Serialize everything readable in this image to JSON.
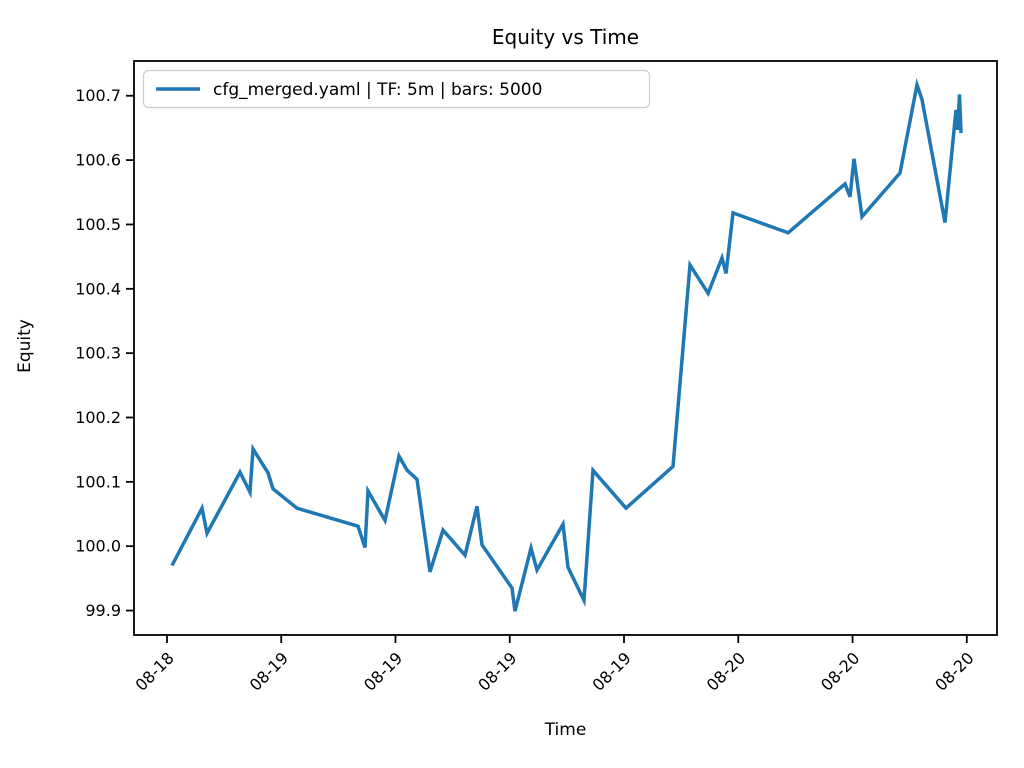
{
  "chart_data": {
    "type": "line",
    "title": "Equity vs Time",
    "xlabel": "Time",
    "ylabel": "Equity",
    "series_color": "#1f77b4",
    "background_color": "#ffffff",
    "grid": false,
    "legend": [
      {
        "label": "cfg_merged.yaml | TF: 5m | bars: 5000",
        "color": "#1f77b4"
      }
    ],
    "legend_position": "upper left",
    "ylim": [
      99.862,
      100.754
    ],
    "y_ticks": [
      99.9,
      100.0,
      100.1,
      100.2,
      100.3,
      100.4,
      100.5,
      100.6,
      100.7
    ],
    "x_tick_labels": [
      "08-18",
      "08-19",
      "08-19",
      "08-19",
      "08-19",
      "08-20",
      "08-20",
      "08-20"
    ],
    "x_tick_positions": [
      0.0382,
      0.1706,
      0.303,
      0.4354,
      0.5678,
      0.7002,
      0.8326,
      0.965
    ],
    "series": [
      {
        "name": "cfg_merged.yaml | TF: 5m | bars: 5000",
        "points": [
          [
            0.044,
            99.97
          ],
          [
            0.0788,
            100.059
          ],
          [
            0.0846,
            100.02
          ],
          [
            0.1228,
            100.115
          ],
          [
            0.1344,
            100.084
          ],
          [
            0.1379,
            100.151
          ],
          [
            0.1553,
            100.114
          ],
          [
            0.1611,
            100.089
          ],
          [
            0.1889,
            100.059
          ],
          [
            0.2596,
            100.031
          ],
          [
            0.2677,
            99.998
          ],
          [
            0.2712,
            100.086
          ],
          [
            0.2909,
            100.04
          ],
          [
            0.3071,
            100.14
          ],
          [
            0.3164,
            100.118
          ],
          [
            0.3279,
            100.104
          ],
          [
            0.343,
            99.96
          ],
          [
            0.3581,
            100.025
          ],
          [
            0.3836,
            99.986
          ],
          [
            0.3975,
            100.062
          ],
          [
            0.4033,
            100.002
          ],
          [
            0.438,
            99.935
          ],
          [
            0.4415,
            99.899
          ],
          [
            0.46,
            99.997
          ],
          [
            0.467,
            99.963
          ],
          [
            0.4971,
            100.034
          ],
          [
            0.5029,
            99.967
          ],
          [
            0.5214,
            99.916
          ],
          [
            0.5319,
            100.118
          ],
          [
            0.5701,
            100.059
          ],
          [
            0.6246,
            100.124
          ],
          [
            0.6443,
            100.437
          ],
          [
            0.6652,
            100.393
          ],
          [
            0.6814,
            100.448
          ],
          [
            0.686,
            100.424
          ],
          [
            0.6941,
            100.518
          ],
          [
            0.7579,
            100.487
          ],
          [
            0.8239,
            100.563
          ],
          [
            0.8297,
            100.543
          ],
          [
            0.8343,
            100.602
          ],
          [
            0.8436,
            100.512
          ],
          [
            0.8876,
            100.58
          ],
          [
            0.9073,
            100.717
          ],
          [
            0.9131,
            100.694
          ],
          [
            0.9397,
            100.503
          ],
          [
            0.9525,
            100.678
          ],
          [
            0.9545,
            100.647
          ],
          [
            0.9565,
            100.702
          ],
          [
            0.9583,
            100.642
          ]
        ]
      }
    ]
  }
}
